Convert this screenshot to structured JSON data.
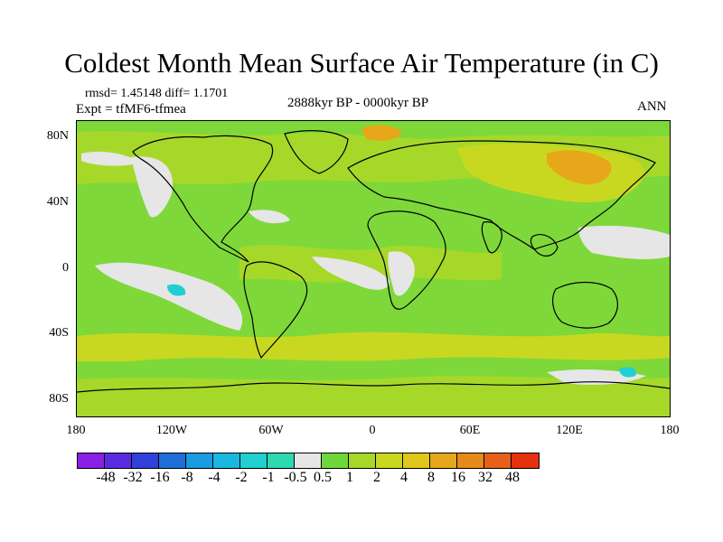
{
  "title": "Coldest Month Mean Surface Air Temperature (in C)",
  "stats": "rmsd= 1.45148 diff= 1.1701",
  "experiment": "Expt = tfMF6-tfmea",
  "period": "2888kyr BP - 0000kyr BP",
  "season": "ANN",
  "lat_labels": [
    "80N",
    "40N",
    "0",
    "40S",
    "80S"
  ],
  "lon_labels": [
    "180",
    "120W",
    "60W",
    "0",
    "60E",
    "120E",
    "180"
  ],
  "colorbar": {
    "colors": [
      "#8a1fe6",
      "#5a2ce0",
      "#3040d8",
      "#1f6ed8",
      "#1a9ae0",
      "#1ab8e0",
      "#20d0d0",
      "#2ed8b0",
      "#e6e6e6",
      "#6ed83a",
      "#a6d82a",
      "#c8d820",
      "#e0c81a",
      "#e6a81a",
      "#e68a1a",
      "#e6601a",
      "#e63010"
    ],
    "labels": [
      "-48",
      "-32",
      "-16",
      "-8",
      "-4",
      "-2",
      "-1",
      "-0.5",
      "0.5",
      "1",
      "2",
      "4",
      "8",
      "16",
      "32",
      "48"
    ]
  },
  "field_colors": {
    "ocean_base": "#7ed83a",
    "light_green": "#a6d82a",
    "yellow": "#c8d820",
    "orange": "#e6a81a",
    "near_zero": "#e6e6e6",
    "cyan": "#20d0d0",
    "coast": "#000000"
  }
}
